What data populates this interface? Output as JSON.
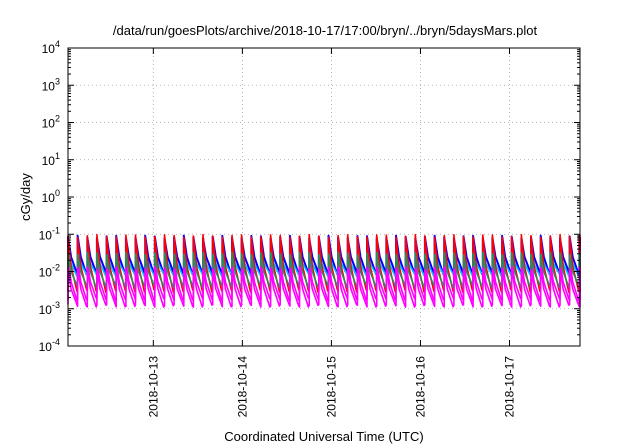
{
  "chart_data": {
    "type": "line",
    "title": "/data/run/goesPlots/archive/2018-10-17/17:00/bryn/../bryn/5daysMars.plot",
    "xlabel": "Coordinated Universal Time (UTC)",
    "ylabel": "cGy/day",
    "yscale": "log",
    "ylim": [
      0.0001,
      10000
    ],
    "xlim": [
      "2018-10-12 01:00",
      "2018-10-17 19:00"
    ],
    "y_ticks": [
      {
        "base": "10",
        "exp": "-4"
      },
      {
        "base": "10",
        "exp": "-3"
      },
      {
        "base": "10",
        "exp": "-2"
      },
      {
        "base": "10",
        "exp": "-1"
      },
      {
        "base": "10",
        "exp": "0"
      },
      {
        "base": "10",
        "exp": "1"
      },
      {
        "base": "10",
        "exp": "2"
      },
      {
        "base": "10",
        "exp": "3"
      },
      {
        "base": "10",
        "exp": "4"
      }
    ],
    "x_ticks": [
      "2018-10-13",
      "2018-10-14",
      "2018-10-15",
      "2018-10-16",
      "2018-10-17"
    ],
    "grid": true,
    "legend": "none",
    "cycle_hours": 2.6,
    "series": [
      {
        "color": "#0000ff",
        "peak": 0.085,
        "trough": 0.009
      },
      {
        "color": "#ff00ff",
        "peak": 0.02,
        "trough": 0.0018
      },
      {
        "color": "#00c0ff",
        "peak": 0.04,
        "trough": 0.008
      },
      {
        "color": "#ff0000",
        "peak": 0.09,
        "trough": 0.003
      },
      {
        "color": "#2e8b57",
        "peak": 0.03,
        "trough": 0.004
      },
      {
        "color": "#ff00ff",
        "peak": 0.012,
        "trough": 0.0012
      }
    ]
  }
}
